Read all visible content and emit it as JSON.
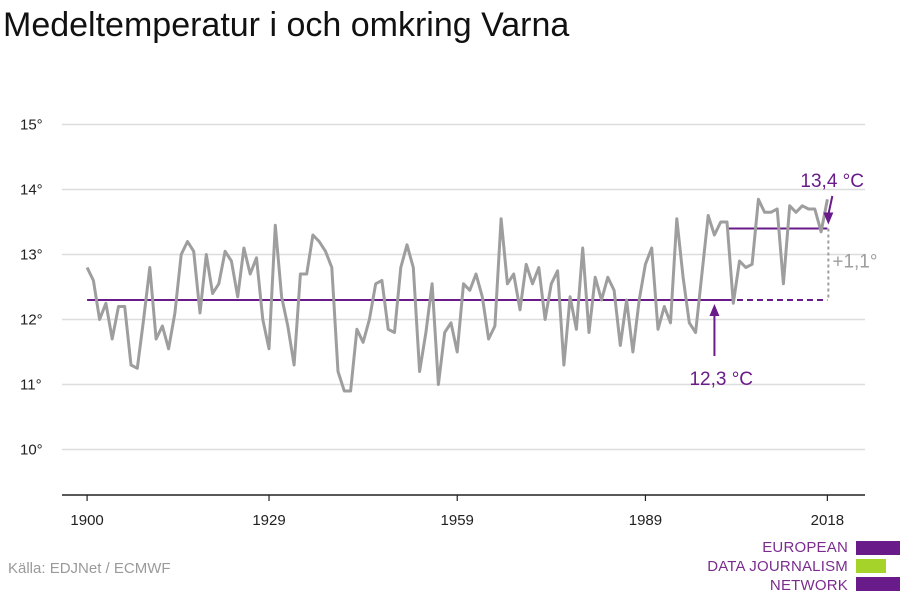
{
  "title": "Medeltemperatur i och omkring Varna",
  "source": "Källa: EDJNet / ECMWF",
  "logo": {
    "lines": [
      "EUROPEAN",
      "DATA JOURNALISM",
      "NETWORK"
    ],
    "colors": {
      "purple": "#6a1b8a",
      "green": "#a6d32a",
      "text": "#7b2d8e"
    }
  },
  "colors": {
    "line": "#9e9e9e",
    "reference": "#6a1b8a",
    "grid": "#dddddd",
    "delta": "#9e9e9e"
  },
  "chart_data": {
    "type": "line",
    "title": "Medeltemperatur i och omkring Varna",
    "xlabel": "",
    "ylabel": "",
    "xlim": [
      1896,
      2024
    ],
    "ylim": [
      9.3,
      15.3
    ],
    "x_ticks": [
      1900,
      1929,
      1959,
      1989,
      2018
    ],
    "x_tick_labels": [
      "1900",
      "1929",
      "1959",
      "1989",
      "2018"
    ],
    "y_ticks": [
      10,
      11,
      12,
      13,
      14,
      15
    ],
    "y_tick_labels": [
      "10°",
      "11°",
      "12°",
      "13°",
      "14°",
      "15°"
    ],
    "grid": true,
    "series": [
      {
        "x": [
          1900,
          1901,
          1902,
          1903,
          1904,
          1905,
          1906,
          1907,
          1908,
          1909,
          1910,
          1911,
          1912,
          1913,
          1914,
          1915,
          1916,
          1917,
          1918,
          1919,
          1920,
          1921,
          1922,
          1923,
          1924,
          1925,
          1926,
          1927,
          1928,
          1929,
          1930,
          1931,
          1932,
          1933,
          1934,
          1935,
          1936,
          1937,
          1938,
          1939,
          1940,
          1941,
          1942,
          1943,
          1944,
          1945,
          1946,
          1947,
          1948,
          1949,
          1950,
          1951,
          1952,
          1953,
          1954,
          1955,
          1956,
          1957,
          1958,
          1959,
          1960,
          1961,
          1962,
          1963,
          1964,
          1965,
          1966,
          1967,
          1968,
          1969,
          1970,
          1971,
          1972,
          1973,
          1974,
          1975,
          1976,
          1977,
          1978,
          1979,
          1980,
          1981,
          1982,
          1983,
          1984,
          1985,
          1986,
          1987,
          1988,
          1989,
          1990,
          1991,
          1992,
          1993,
          1994,
          1995,
          1996,
          1997,
          1998,
          1999,
          2000,
          2001,
          2002,
          2003,
          2004,
          2005,
          2006,
          2007,
          2008,
          2009,
          2010,
          2011,
          2012,
          2013,
          2014,
          2015,
          2016,
          2017,
          2018
        ],
        "values": [
          12.8,
          12.6,
          12.0,
          12.25,
          11.7,
          12.2,
          12.2,
          11.3,
          11.25,
          12.0,
          12.8,
          11.7,
          11.9,
          11.55,
          12.1,
          13.0,
          13.2,
          13.05,
          12.1,
          13.0,
          12.4,
          12.55,
          13.05,
          12.9,
          12.35,
          13.1,
          12.7,
          12.95,
          12.0,
          11.55,
          13.45,
          12.35,
          11.9,
          11.3,
          12.7,
          12.7,
          13.3,
          13.2,
          13.05,
          12.8,
          11.2,
          10.9,
          10.9,
          11.85,
          11.65,
          12.0,
          12.55,
          12.6,
          11.85,
          11.8,
          12.8,
          13.15,
          12.8,
          11.2,
          11.8,
          12.55,
          11.0,
          11.8,
          11.95,
          11.5,
          12.55,
          12.45,
          12.7,
          12.35,
          11.7,
          11.9,
          13.55,
          12.55,
          12.7,
          12.15,
          12.85,
          12.55,
          12.8,
          12.0,
          12.55,
          12.75,
          11.3,
          12.35,
          11.85,
          13.1,
          11.8,
          12.65,
          12.3,
          12.65,
          12.45,
          11.6,
          12.3,
          11.5,
          12.3,
          12.85,
          13.1,
          11.85,
          12.2,
          11.95,
          13.55,
          12.65,
          11.95,
          11.8,
          12.7,
          13.6,
          13.3,
          13.5,
          13.5,
          12.25,
          12.9,
          12.8,
          12.85,
          13.85,
          13.65,
          13.65,
          13.7,
          12.55,
          13.75,
          13.65,
          13.75,
          13.7,
          13.7,
          13.35,
          13.85
        ]
      }
    ],
    "reference_lines": [
      {
        "label": "12,3 °C",
        "value": 12.3,
        "x_start": 1900,
        "x_end": 2002,
        "dashed_to": 2018
      },
      {
        "label": "13,4 °C",
        "value": 13.4,
        "x_start": 2002,
        "x_end": 2018
      }
    ],
    "delta_label": "+1,1°"
  }
}
